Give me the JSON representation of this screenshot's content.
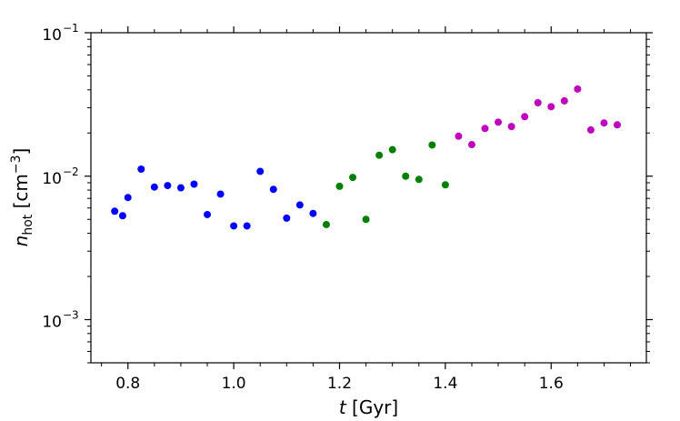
{
  "chart_data": {
    "type": "scatter",
    "title": "",
    "xlabel": "t [Gyr]",
    "ylabel": "n_hot [cm^-3]",
    "xlim": [
      0.73,
      1.78
    ],
    "ylim": [
      0.0005,
      0.1
    ],
    "yscale": "log",
    "grid": false,
    "legend": "none",
    "x_ticks": [
      0.8,
      1.0,
      1.2,
      1.4,
      1.6
    ],
    "x_tick_labels": [
      "0.8",
      "1.0",
      "1.2",
      "1.4",
      "1.6"
    ],
    "y_ticks": [
      0.001,
      0.01,
      0.1
    ],
    "y_tick_labels": [
      "10",
      "10",
      "10"
    ],
    "y_tick_exponents": [
      "−3",
      "−2",
      "−1"
    ],
    "series": [
      {
        "color": "#0000ff",
        "x": [
          0.775,
          0.79,
          0.8,
          0.825,
          0.85,
          0.875,
          0.9,
          0.925,
          0.95,
          0.975,
          1.0,
          1.025,
          1.05,
          1.075,
          1.1,
          1.125,
          1.15
        ],
        "y": [
          0.0057,
          0.0053,
          0.0071,
          0.0112,
          0.0084,
          0.0086,
          0.0083,
          0.0088,
          0.0054,
          0.0075,
          0.0045,
          0.0045,
          0.0108,
          0.0081,
          0.0051,
          0.0063,
          0.0055
        ]
      },
      {
        "color": "#008000",
        "x": [
          1.175,
          1.2,
          1.225,
          1.25,
          1.275,
          1.3,
          1.325,
          1.35,
          1.375,
          1.4
        ],
        "y": [
          0.0046,
          0.0085,
          0.0098,
          0.005,
          0.014,
          0.0153,
          0.01,
          0.0095,
          0.0165,
          0.0087
        ]
      },
      {
        "color": "#bf00bf",
        "x": [
          1.425,
          1.45,
          1.475,
          1.5,
          1.525,
          1.55,
          1.575,
          1.6,
          1.625,
          1.65,
          1.675,
          1.7,
          1.725
        ],
        "y": [
          0.019,
          0.0166,
          0.0215,
          0.0238,
          0.0222,
          0.026,
          0.0325,
          0.0305,
          0.0335,
          0.0405,
          0.021,
          0.0235,
          0.0228
        ]
      }
    ]
  }
}
